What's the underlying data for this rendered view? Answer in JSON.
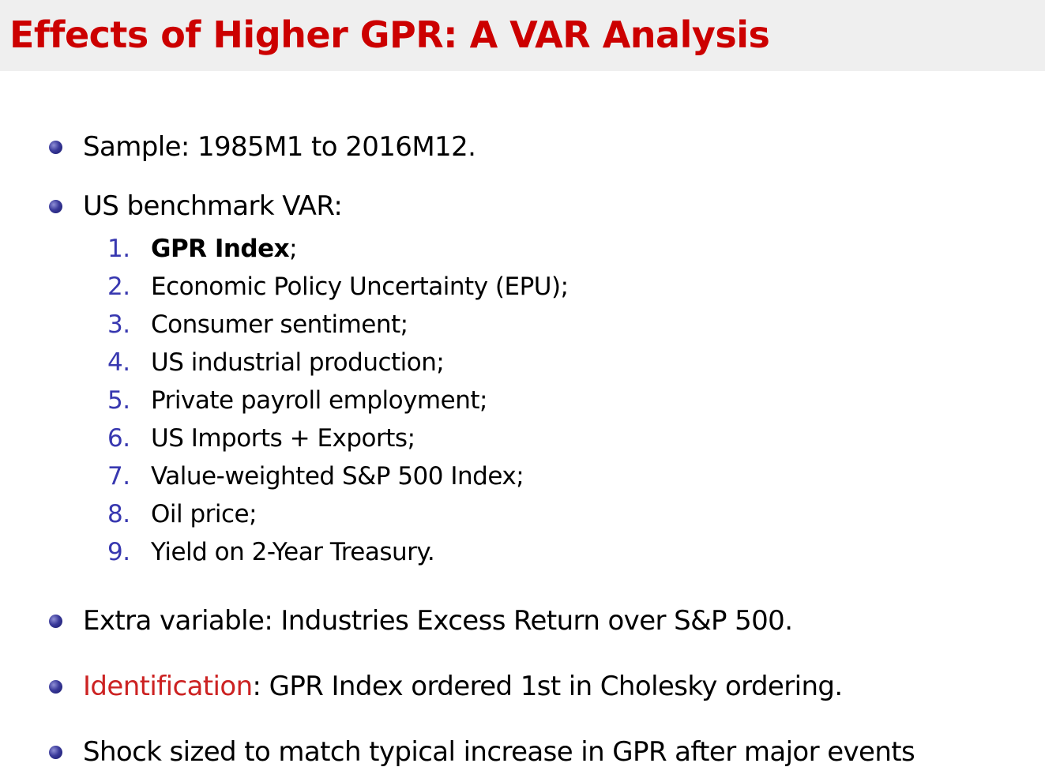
{
  "title": "Effects of Higher GPR: A VAR Analysis",
  "bullets": {
    "sample": "Sample:  1985M1 to 2016M12.",
    "benchmark": "US benchmark VAR:",
    "extra": "Extra variable:  Industries Excess Return over S&P 500.",
    "identification_label": "Identification",
    "identification_rest": ":  GPR Index ordered 1st in Cholesky ordering.",
    "shock": "Shock sized to match typical increase in GPR after major events"
  },
  "var_list": [
    {
      "num": "1.",
      "text": "GPR Index",
      "suffix": ";"
    },
    {
      "num": "2.",
      "text": "Economic Policy Uncertainty (EPU);"
    },
    {
      "num": "3.",
      "text": "Consumer sentiment;"
    },
    {
      "num": "4.",
      "text": "US industrial production;"
    },
    {
      "num": "5.",
      "text": "Private payroll employment;"
    },
    {
      "num": "6.",
      "text": "US Imports + Exports;"
    },
    {
      "num": "7.",
      "text": "Value-weighted S&P 500 Index;"
    },
    {
      "num": "8.",
      "text": "Oil price;"
    },
    {
      "num": "9.",
      "text": "Yield on 2-Year Treasury."
    }
  ],
  "colors": {
    "title": "#cc0000",
    "title_bar_bg": "#efefef",
    "enum_number": "#3838b0",
    "highlight": "#cc2222",
    "bullet": "#2a2a8a"
  }
}
